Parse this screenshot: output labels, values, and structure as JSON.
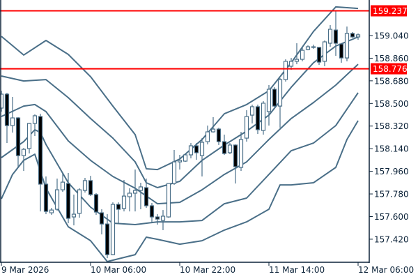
{
  "chart_data": {
    "type": "candlestick",
    "title": "",
    "colors": {
      "line": "#4a6f88",
      "bear_fill": "#000000",
      "bull_fill": "#ffffff",
      "hline": "#ff0000",
      "axis": "#0b2238"
    },
    "ylim": [
      157.3,
      159.4
    ],
    "y_ticks": [
      "159.040",
      "158.860",
      "158.680",
      "158.500",
      "158.320",
      "158.140",
      "157.960",
      "157.780",
      "157.600",
      "157.420"
    ],
    "x_ticks": [
      {
        "t": "9 Mar 14:00",
        "label": "9 Mar 2026"
      },
      {
        "t": "10 Mar 06:00",
        "label": "10 Mar 06:00"
      },
      {
        "t": "10 Mar 22:00",
        "label": "10 Mar 22:00"
      },
      {
        "t": "11 Mar 14:00",
        "label": "11 Mar 14:00"
      },
      {
        "t": "12 Mar 06:00",
        "label": "12 Mar 06:00"
      }
    ],
    "horizontal_lines": [
      {
        "value": 159.237,
        "label": "159.237"
      },
      {
        "value": 158.776,
        "label": "158.776"
      }
    ],
    "candles_fields": [
      "open",
      "high",
      "low",
      "close"
    ],
    "candles": [
      [
        158.463,
        158.601,
        158.435,
        158.574
      ],
      [
        158.574,
        158.585,
        158.185,
        158.324
      ],
      [
        158.324,
        158.552,
        158.268,
        158.385
      ],
      [
        158.385,
        158.391,
        157.991,
        158.085
      ],
      [
        158.085,
        158.146,
        157.963,
        158.135
      ],
      [
        158.141,
        158.346,
        158.102,
        158.341
      ],
      [
        158.341,
        158.413,
        158.241,
        158.402
      ],
      [
        158.396,
        158.418,
        157.641,
        157.858
      ],
      [
        157.858,
        157.919,
        157.619,
        157.641
      ],
      [
        157.63,
        157.669,
        157.614,
        157.652
      ],
      [
        157.658,
        157.902,
        157.647,
        157.813
      ],
      [
        157.813,
        157.947,
        157.797,
        157.874
      ],
      [
        157.863,
        157.947,
        157.547,
        157.586
      ],
      [
        157.597,
        157.775,
        157.53,
        157.619
      ],
      [
        157.625,
        157.825,
        157.591,
        157.813
      ],
      [
        157.808,
        157.908,
        157.791,
        157.886
      ],
      [
        157.886,
        157.924,
        157.763,
        157.775
      ],
      [
        157.775,
        157.786,
        157.614,
        157.636
      ],
      [
        157.63,
        157.658,
        157.458,
        157.541
      ],
      [
        157.541,
        157.619,
        157.269,
        157.297
      ],
      [
        157.297,
        157.713,
        157.292,
        157.697
      ],
      [
        157.697,
        157.713,
        157.547,
        157.658
      ],
      [
        157.664,
        157.891,
        157.641,
        157.763
      ],
      [
        157.758,
        157.825,
        157.641,
        157.786
      ],
      [
        157.786,
        157.974,
        157.641,
        157.808
      ],
      [
        157.808,
        157.869,
        157.658,
        157.836
      ],
      [
        157.83,
        157.902,
        157.669,
        157.686
      ],
      [
        157.686,
        157.708,
        157.547,
        157.597
      ],
      [
        157.597,
        157.619,
        157.536,
        157.58
      ],
      [
        157.569,
        157.652,
        157.492,
        157.603
      ],
      [
        157.597,
        157.863,
        157.591,
        157.863
      ],
      [
        157.863,
        158.13,
        157.852,
        158.035
      ],
      [
        158.035,
        158.091,
        157.974,
        158.047
      ],
      [
        158.041,
        158.102,
        158.035,
        158.091
      ],
      [
        158.091,
        158.185,
        158.063,
        158.163
      ],
      [
        158.163,
        158.185,
        158.052,
        158.108
      ],
      [
        158.085,
        158.224,
        157.919,
        158.191
      ],
      [
        158.196,
        158.324,
        158.174,
        158.274
      ],
      [
        158.274,
        158.391,
        158.268,
        158.296
      ],
      [
        158.296,
        158.307,
        158.169,
        158.196
      ],
      [
        158.196,
        158.252,
        158.091,
        158.102
      ],
      [
        158.108,
        158.185,
        158.097,
        158.169
      ],
      [
        158.169,
        158.174,
        157.863,
        157.997
      ],
      [
        157.991,
        158.274,
        157.963,
        158.213
      ],
      [
        158.224,
        158.446,
        158.196,
        158.396
      ],
      [
        158.407,
        158.491,
        158.341,
        158.474
      ],
      [
        158.474,
        158.491,
        158.257,
        158.291
      ],
      [
        158.285,
        158.518,
        158.252,
        158.502
      ],
      [
        158.435,
        158.646,
        158.324,
        158.613
      ],
      [
        158.613,
        158.629,
        158.474,
        158.479
      ],
      [
        158.479,
        158.701,
        158.307,
        158.69
      ],
      [
        158.69,
        158.851,
        158.674,
        158.835
      ],
      [
        158.796,
        158.862,
        158.768,
        158.835
      ],
      [
        158.835,
        158.979,
        158.812,
        158.851
      ],
      [
        158.851,
        158.946,
        158.835,
        158.923
      ],
      [
        158.929,
        158.962,
        158.923,
        158.951
      ],
      [
        158.946,
        158.968,
        158.935,
        158.951
      ],
      [
        158.946,
        158.946,
        158.807,
        158.829
      ],
      [
        158.835,
        159.001,
        158.796,
        158.99
      ],
      [
        158.979,
        159.123,
        158.951,
        159.09
      ],
      [
        159.084,
        159.24,
        158.879,
        158.979
      ],
      [
        158.973,
        158.979,
        158.824,
        158.862
      ],
      [
        158.862,
        159.112,
        158.835,
        159.057
      ],
      [
        159.057,
        159.068,
        159.023,
        159.029
      ],
      [
        159.029,
        159.057,
        159.007,
        159.046
      ]
    ],
    "first_candle_time": "9 Mar 14:00",
    "bar_interval_hours": 1,
    "band_lines": [
      [
        [
          "9 Mar 14:00",
          159.034
        ],
        [
          "9 Mar 18:00",
          158.885
        ],
        [
          "9 Mar 22:00",
          159.001
        ],
        [
          "10 Mar 02:00",
          158.89
        ],
        [
          "10 Mar 06:00",
          158.713
        ],
        [
          "10 Mar 10:00",
          158.479
        ],
        [
          "10 Mar 14:00",
          158.252
        ],
        [
          "10 Mar 16:00",
          157.98
        ],
        [
          "10 Mar 18:00",
          157.974
        ],
        [
          "10 Mar 22:00",
          158.058
        ],
        [
          "11 Mar 02:00",
          158.213
        ],
        [
          "11 Mar 06:00",
          158.418
        ],
        [
          "11 Mar 10:00",
          158.491
        ],
        [
          "11 Mar 14:00",
          158.601
        ],
        [
          "11 Mar 18:00",
          158.824
        ],
        [
          "11 Mar 22:00",
          159.073
        ],
        [
          "12 Mar 02:00",
          159.268
        ],
        [
          "12 Mar 06:00",
          159.256
        ]
      ],
      [
        [
          "9 Mar 14:00",
          158.718
        ],
        [
          "9 Mar 18:00",
          158.679
        ],
        [
          "9 Mar 22:00",
          158.69
        ],
        [
          "10 Mar 02:00",
          158.546
        ],
        [
          "10 Mar 06:00",
          158.38
        ],
        [
          "10 Mar 10:00",
          158.224
        ],
        [
          "10 Mar 14:00",
          158.035
        ],
        [
          "10 Mar 16:00",
          157.869
        ],
        [
          "10 Mar 18:00",
          157.83
        ],
        [
          "10 Mar 22:00",
          157.88
        ],
        [
          "11 Mar 02:00",
          158.047
        ],
        [
          "11 Mar 06:00",
          158.169
        ],
        [
          "11 Mar 10:00",
          158.28
        ],
        [
          "11 Mar 14:00",
          158.407
        ],
        [
          "11 Mar 18:00",
          158.629
        ],
        [
          "11 Mar 22:00",
          158.824
        ],
        [
          "12 Mar 02:00",
          158.957
        ],
        [
          "12 Mar 06:00",
          159.029
        ]
      ],
      [
        [
          "9 Mar 14:00",
          158.396
        ],
        [
          "9 Mar 18:00",
          158.479
        ],
        [
          "9 Mar 20:00",
          158.491
        ],
        [
          "9 Mar 22:00",
          158.435
        ],
        [
          "10 Mar 02:00",
          158.202
        ],
        [
          "10 Mar 06:00",
          158.047
        ],
        [
          "10 Mar 10:00",
          157.919
        ],
        [
          "10 Mar 14:00",
          157.825
        ],
        [
          "10 Mar 18:00",
          157.702
        ],
        [
          "10 Mar 22:00",
          157.713
        ],
        [
          "11 Mar 02:00",
          157.813
        ],
        [
          "11 Mar 06:00",
          157.935
        ],
        [
          "11 Mar 10:00",
          158.035
        ],
        [
          "11 Mar 14:00",
          158.213
        ],
        [
          "11 Mar 18:00",
          158.38
        ],
        [
          "11 Mar 22:00",
          158.507
        ],
        [
          "12 Mar 02:00",
          158.646
        ],
        [
          "12 Mar 06:00",
          158.812
        ]
      ],
      [
        [
          "9 Mar 14:00",
          158.069
        ],
        [
          "9 Mar 18:00",
          158.196
        ],
        [
          "9 Mar 20:00",
          158.291
        ],
        [
          "9 Mar 21:00",
          158.269
        ],
        [
          "9 Mar 22:00",
          158.174
        ],
        [
          "10 Mar 02:00",
          157.869
        ],
        [
          "10 Mar 06:00",
          157.675
        ],
        [
          "10 Mar 10:00",
          157.547
        ],
        [
          "10 Mar 14:00",
          157.536
        ],
        [
          "10 Mar 18:00",
          157.558
        ],
        [
          "10 Mar 22:00",
          157.558
        ],
        [
          "11 Mar 02:00",
          157.569
        ],
        [
          "11 Mar 06:00",
          157.702
        ],
        [
          "11 Mar 10:00",
          157.747
        ],
        [
          "11 Mar 14:00",
          157.935
        ],
        [
          "11 Mar 18:00",
          158.124
        ],
        [
          "11 Mar 22:00",
          158.185
        ],
        [
          "12 Mar 02:00",
          158.324
        ],
        [
          "12 Mar 06:00",
          158.585
        ]
      ],
      [
        [
          "9 Mar 14:00",
          157.741
        ],
        [
          "9 Mar 16:00",
          157.935
        ],
        [
          "9 Mar 18:00",
          158.047
        ],
        [
          "9 Mar 20:00",
          158.096
        ],
        [
          "9 Mar 22:00",
          157.825
        ],
        [
          "10 Mar 02:00",
          157.519
        ],
        [
          "10 Mar 06:00",
          157.408
        ],
        [
          "10 Mar 09:00",
          157.242
        ],
        [
          "10 Mar 14:00",
          157.297
        ],
        [
          "10 Mar 16:00",
          157.436
        ],
        [
          "10 Mar 18:00",
          157.419
        ],
        [
          "10 Mar 22:00",
          157.38
        ],
        [
          "11 Mar 02:00",
          157.408
        ],
        [
          "11 Mar 06:00",
          157.492
        ],
        [
          "11 Mar 10:00",
          157.558
        ],
        [
          "11 Mar 14:00",
          157.658
        ],
        [
          "11 Mar 16:00",
          157.852
        ],
        [
          "11 Mar 18:00",
          157.852
        ],
        [
          "11 Mar 22:00",
          157.869
        ],
        [
          "12 Mar 02:00",
          157.991
        ],
        [
          "12 Mar 04:00",
          158.213
        ],
        [
          "12 Mar 06:00",
          158.363
        ]
      ]
    ]
  }
}
